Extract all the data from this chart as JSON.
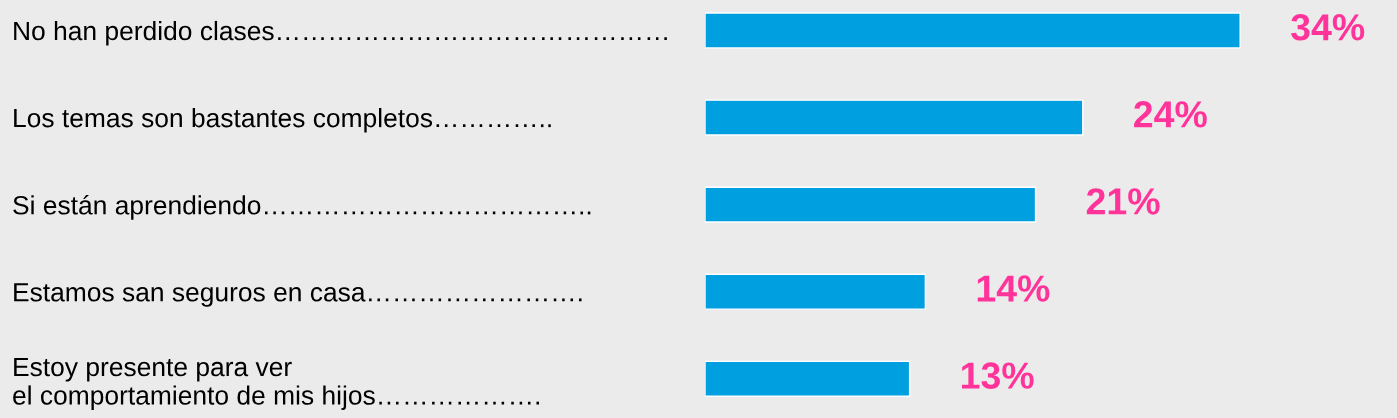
{
  "chart_data": {
    "type": "bar",
    "orientation": "horizontal",
    "categories": [
      "No han perdido clases………………………………………",
      "Los temas son bastantes completos…………..",
      "Si están aprendiendo………………………………..",
      "Estamos san seguros en casa…………………….",
      "Estoy presente para ver\nel comportamiento de mis hijos………………."
    ],
    "values": [
      34,
      24,
      21,
      14,
      13
    ],
    "color": "#009fe0",
    "value_labels": [
      "34%",
      "24%",
      "21%",
      "14%",
      "13%"
    ],
    "tick_labels": "y"
  }
}
